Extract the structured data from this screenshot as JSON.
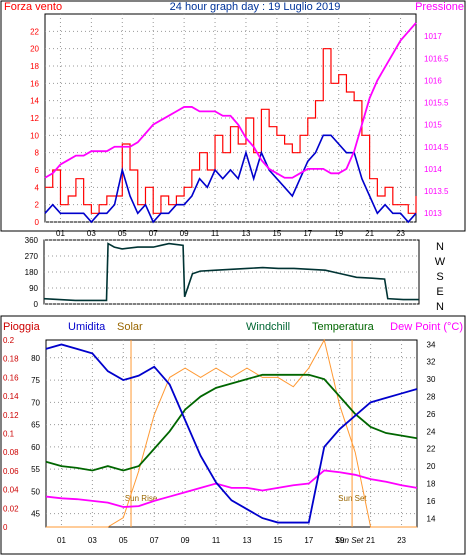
{
  "header": {
    "left_label": "Forza vento",
    "title": "24 hour graph day : 19 Luglio 2019",
    "right_label": "Pressione"
  },
  "colors": {
    "wind": "#ff0000",
    "gust": "#0000cc",
    "pressure": "#ff00ff",
    "direction": "#003333",
    "rain": "#cc0000",
    "humidity": "#0000cc",
    "solar": "#ff9933",
    "windchill": "#006633",
    "temperature": "#006600",
    "dewpoint": "#ff00ff",
    "grid": "#000000"
  },
  "chart_data": [
    {
      "type": "line",
      "name": "wind-pressure",
      "x_ticks": [
        "01",
        "03",
        "05",
        "07",
        "09",
        "11",
        "13",
        "15",
        "17",
        "19",
        "21",
        "23"
      ],
      "y_left_ticks": [
        "0",
        "2",
        "4",
        "6",
        "8",
        "10",
        "12",
        "14",
        "16",
        "18",
        "20",
        "22"
      ],
      "ylim_left": [
        0,
        24
      ],
      "y_right_ticks": [
        "1013",
        "1013.5",
        "1014",
        "1014.5",
        "1015",
        "1015.5",
        "1016",
        "1016.5",
        "1017"
      ],
      "ylim_right": [
        1012.8,
        1017.5
      ],
      "wind_x": [
        0,
        0.5,
        1,
        1.5,
        2,
        2.5,
        3,
        3.5,
        4,
        4.5,
        5,
        5.5,
        6,
        6.5,
        7,
        7.5,
        8,
        8.5,
        9,
        9.5,
        10,
        10.5,
        11,
        11.5,
        12,
        12.5,
        13,
        13.5,
        14,
        14.5,
        15,
        15.5,
        16,
        16.5,
        17,
        17.5,
        18,
        18.5,
        19,
        19.5,
        20,
        20.5,
        21,
        21.5,
        22,
        22.5,
        23,
        23.5,
        24
      ],
      "wind_values": [
        4,
        6,
        2,
        3,
        5,
        2,
        1,
        2,
        3,
        3,
        9,
        6,
        2,
        4,
        1,
        3,
        2,
        3,
        4,
        6,
        8,
        6,
        10,
        8,
        11,
        9,
        12,
        8,
        13,
        11,
        10,
        9,
        8,
        10,
        12,
        14,
        20,
        16,
        17,
        15,
        14,
        10,
        5,
        3,
        4,
        2,
        2,
        1,
        3
      ],
      "gust_values": [
        1,
        2,
        1,
        1,
        1,
        1,
        0,
        1,
        1,
        2,
        6,
        3,
        1,
        2,
        0,
        1,
        1,
        2,
        2,
        3,
        5,
        4,
        6,
        5,
        6,
        5,
        8,
        5,
        8,
        6,
        5,
        4,
        3,
        5,
        7,
        8,
        10,
        10,
        9,
        8,
        8,
        5,
        3,
        1,
        2,
        1,
        1,
        0,
        1
      ],
      "pressure_values": [
        1013.8,
        1013.9,
        1014.1,
        1014.2,
        1014.3,
        1014.3,
        1014.4,
        1014.4,
        1014.4,
        1014.5,
        1014.5,
        1014.5,
        1014.6,
        1014.8,
        1015.0,
        1015.1,
        1015.2,
        1015.3,
        1015.4,
        1015.4,
        1015.3,
        1015.3,
        1015.3,
        1015.2,
        1015.2,
        1015.0,
        1014.7,
        1014.5,
        1014.2,
        1014.0,
        1013.9,
        1013.8,
        1013.8,
        1013.9,
        1014.0,
        1014.0,
        1014.0,
        1013.9,
        1013.9,
        1014.0,
        1014.4,
        1015.0,
        1015.6,
        1016.0,
        1016.3,
        1016.6,
        1016.9,
        1017.1,
        1017.3
      ]
    },
    {
      "type": "line",
      "name": "wind-direction",
      "y_ticks": [
        "0",
        "90",
        "180",
        "270",
        "360"
      ],
      "ylim": [
        0,
        360
      ],
      "right_labels": [
        "N",
        "W",
        "S",
        "E",
        "N"
      ],
      "x": [
        0,
        1,
        2,
        3,
        4,
        4.1,
        4.5,
        5,
        6,
        7,
        7.5,
        8,
        8.9,
        9,
        9.5,
        10,
        11,
        12,
        13,
        14,
        15,
        16,
        17,
        18,
        19,
        20,
        21,
        21.8,
        22,
        23,
        24
      ],
      "values": [
        30,
        25,
        20,
        20,
        20,
        340,
        320,
        310,
        320,
        320,
        330,
        340,
        330,
        40,
        170,
        185,
        190,
        195,
        200,
        205,
        200,
        200,
        195,
        190,
        170,
        150,
        145,
        140,
        30,
        25,
        25
      ]
    },
    {
      "type": "line",
      "name": "rain-humidity-temperature",
      "left_outer_ticks": [
        "0",
        "0.02",
        "0.04",
        "0.06",
        "0.08",
        "0.1",
        "0.12",
        "0.14",
        "0.16",
        "0.18",
        "0.2"
      ],
      "left_inner_ticks": [
        "45",
        "50",
        "55",
        "60",
        "65",
        "70",
        "75",
        "80"
      ],
      "right_ticks": [
        "14",
        "16",
        "18",
        "20",
        "22",
        "24",
        "26",
        "28",
        "30",
        "32",
        "34"
      ],
      "ylim_humidity": [
        42,
        84
      ],
      "ylim_temperature": [
        13,
        34.5
      ],
      "x_ticks": [
        "01",
        "03",
        "05",
        "07",
        "09",
        "11",
        "13",
        "15",
        "17",
        "19",
        "21",
        "23"
      ],
      "sunrise_label": "Sun Rise",
      "sunset_label": "Sun Set",
      "sunset_tick": "Sun Set",
      "x": [
        0,
        1,
        2,
        3,
        4,
        5,
        6,
        7,
        8,
        9,
        10,
        11,
        12,
        13,
        14,
        15,
        16,
        17,
        18,
        19,
        20,
        21,
        22,
        23,
        24
      ],
      "humidity_values": [
        82,
        83,
        82,
        81,
        77,
        75,
        76,
        78,
        74,
        66,
        58,
        52,
        48,
        46,
        44,
        43,
        43,
        43,
        60,
        64,
        67,
        70,
        71,
        72,
        73
      ],
      "temperature_values": [
        20.5,
        20,
        19.8,
        19.5,
        20,
        19.5,
        20,
        22,
        24,
        26.5,
        28,
        29,
        29.5,
        30,
        30.5,
        30.5,
        30.5,
        30.5,
        30,
        28,
        26,
        24.5,
        23.8,
        23.5,
        23.2
      ],
      "dewpoint_values": [
        16.5,
        16.3,
        16.2,
        16,
        15.8,
        15.3,
        15.4,
        16,
        16.5,
        17,
        17.5,
        18,
        17.5,
        17.5,
        17.2,
        17.5,
        17.8,
        18,
        19.5,
        19.3,
        19,
        18.5,
        18.2,
        17.8,
        17.5
      ],
      "solar_values": [
        0,
        0,
        0,
        0,
        0,
        0.01,
        0.06,
        0.12,
        0.16,
        0.17,
        0.16,
        0.17,
        0.16,
        0.17,
        0.16,
        0.16,
        0.15,
        0.17,
        0.2,
        0.13,
        0.08,
        0,
        0,
        0,
        0
      ],
      "rain_values": [
        0,
        0,
        0,
        0,
        0,
        0,
        0,
        0,
        0,
        0,
        0,
        0,
        0,
        0,
        0,
        0,
        0,
        0,
        0,
        0,
        0,
        0,
        0,
        0,
        0
      ]
    }
  ],
  "labels": {
    "pioggia": "Pioggia",
    "umidita": "Umidita",
    "solar": "Solar",
    "windchill": "Windchill",
    "temperatura": "Temperatura",
    "dewpoint": "Dew Point (°C)"
  }
}
